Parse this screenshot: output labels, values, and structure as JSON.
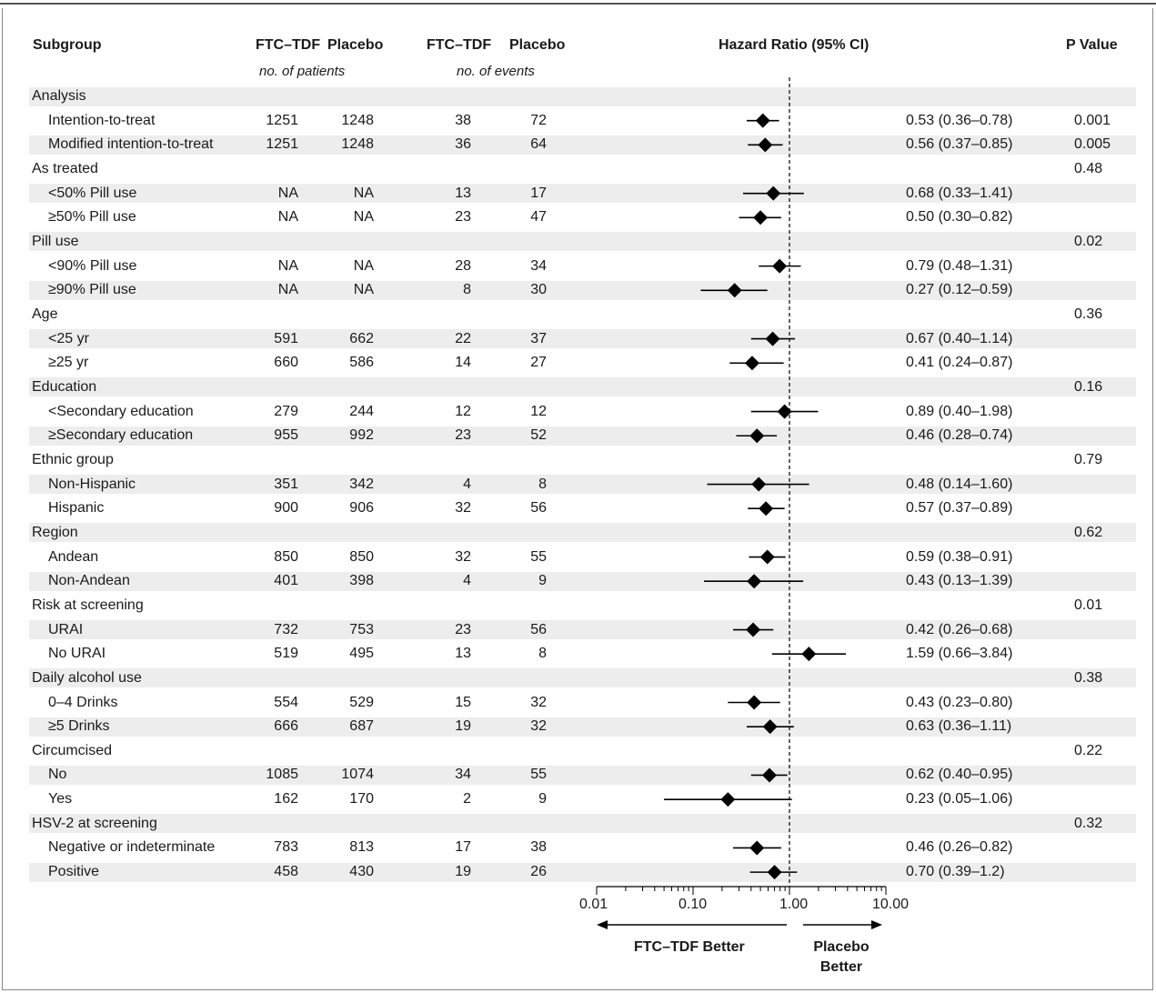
{
  "headers": {
    "subgroup": "Subgroup",
    "ftc_patients": "FTC–TDF",
    "placebo_patients": "Placebo",
    "patients_sub": "no. of patients",
    "ftc_events": "FTC–TDF",
    "placebo_events": "Placebo",
    "events_sub": "no. of events",
    "hr": "Hazard Ratio (95% CI)",
    "p": "P Value"
  },
  "axis": {
    "ticks": [
      "0.01",
      "0.10",
      "1.00",
      "10.00"
    ],
    "left_label": "FTC–TDF Better",
    "right_label_1": "Placebo",
    "right_label_2": "Better"
  },
  "rows": [
    {
      "label": "Analysis",
      "group": true,
      "p": ""
    },
    {
      "label": "Intention-to-treat",
      "group": false,
      "ftc_pat": "1251",
      "pla_pat": "1248",
      "ftc_ev": "38",
      "pla_ev": "72",
      "hr": 0.53,
      "lo": 0.36,
      "hi": 0.78,
      "ci": "0.53 (0.36–0.78)",
      "p": "0.001"
    },
    {
      "label": "Modified intention-to-treat",
      "group": false,
      "ftc_pat": "1251",
      "pla_pat": "1248",
      "ftc_ev": "36",
      "pla_ev": "64",
      "hr": 0.56,
      "lo": 0.37,
      "hi": 0.85,
      "ci": "0.56 (0.37–0.85)",
      "p": "0.005"
    },
    {
      "label": "As treated",
      "group": true,
      "p": "0.48"
    },
    {
      "label": "<50% Pill use",
      "group": false,
      "ftc_pat": "NA",
      "pla_pat": "NA",
      "ftc_ev": "13",
      "pla_ev": "17",
      "hr": 0.68,
      "lo": 0.33,
      "hi": 1.41,
      "ci": "0.68 (0.33–1.41)",
      "p": ""
    },
    {
      "label": "≥50% Pill use",
      "group": false,
      "ftc_pat": "NA",
      "pla_pat": "NA",
      "ftc_ev": "23",
      "pla_ev": "47",
      "hr": 0.5,
      "lo": 0.3,
      "hi": 0.82,
      "ci": "0.50 (0.30–0.82)",
      "p": ""
    },
    {
      "label": "Pill use",
      "group": true,
      "p": "0.02"
    },
    {
      "label": "<90% Pill use",
      "group": false,
      "ftc_pat": "NA",
      "pla_pat": "NA",
      "ftc_ev": "28",
      "pla_ev": "34",
      "hr": 0.79,
      "lo": 0.48,
      "hi": 1.31,
      "ci": "0.79 (0.48–1.31)",
      "p": ""
    },
    {
      "label": "≥90% Pill use",
      "group": false,
      "ftc_pat": "NA",
      "pla_pat": "NA",
      "ftc_ev": "8",
      "pla_ev": "30",
      "hr": 0.27,
      "lo": 0.12,
      "hi": 0.59,
      "ci": "0.27 (0.12–0.59)",
      "p": ""
    },
    {
      "label": "Age",
      "group": true,
      "p": "0.36"
    },
    {
      "label": "<25 yr",
      "group": false,
      "ftc_pat": "591",
      "pla_pat": "662",
      "ftc_ev": "22",
      "pla_ev": "37",
      "hr": 0.67,
      "lo": 0.4,
      "hi": 1.14,
      "ci": "0.67 (0.40–1.14)",
      "p": ""
    },
    {
      "label": "≥25 yr",
      "group": false,
      "ftc_pat": "660",
      "pla_pat": "586",
      "ftc_ev": "14",
      "pla_ev": "27",
      "hr": 0.41,
      "lo": 0.24,
      "hi": 0.87,
      "ci": "0.41 (0.24–0.87)",
      "p": ""
    },
    {
      "label": "Education",
      "group": true,
      "p": "0.16"
    },
    {
      "label": "<Secondary education",
      "group": false,
      "ftc_pat": "279",
      "pla_pat": "244",
      "ftc_ev": "12",
      "pla_ev": "12",
      "hr": 0.89,
      "lo": 0.4,
      "hi": 1.98,
      "ci": "0.89 (0.40–1.98)",
      "p": ""
    },
    {
      "label": "≥Secondary education",
      "group": false,
      "ftc_pat": "955",
      "pla_pat": "992",
      "ftc_ev": "23",
      "pla_ev": "52",
      "hr": 0.46,
      "lo": 0.28,
      "hi": 0.74,
      "ci": "0.46 (0.28–0.74)",
      "p": ""
    },
    {
      "label": "Ethnic group",
      "group": true,
      "p": "0.79"
    },
    {
      "label": "Non-Hispanic",
      "group": false,
      "ftc_pat": "351",
      "pla_pat": "342",
      "ftc_ev": "4",
      "pla_ev": "8",
      "hr": 0.48,
      "lo": 0.14,
      "hi": 1.6,
      "ci": "0.48 (0.14–1.60)",
      "p": ""
    },
    {
      "label": "Hispanic",
      "group": false,
      "ftc_pat": "900",
      "pla_pat": "906",
      "ftc_ev": "32",
      "pla_ev": "56",
      "hr": 0.57,
      "lo": 0.37,
      "hi": 0.89,
      "ci": "0.57 (0.37–0.89)",
      "p": ""
    },
    {
      "label": "Region",
      "group": true,
      "p": "0.62"
    },
    {
      "label": "Andean",
      "group": false,
      "ftc_pat": "850",
      "pla_pat": "850",
      "ftc_ev": "32",
      "pla_ev": "55",
      "hr": 0.59,
      "lo": 0.38,
      "hi": 0.91,
      "ci": "0.59 (0.38–0.91)",
      "p": ""
    },
    {
      "label": "Non-Andean",
      "group": false,
      "ftc_pat": "401",
      "pla_pat": "398",
      "ftc_ev": "4",
      "pla_ev": "9",
      "hr": 0.43,
      "lo": 0.13,
      "hi": 1.39,
      "ci": "0.43 (0.13–1.39)",
      "p": ""
    },
    {
      "label": "Risk at screening",
      "group": true,
      "p": "0.01"
    },
    {
      "label": "URAI",
      "group": false,
      "ftc_pat": "732",
      "pla_pat": "753",
      "ftc_ev": "23",
      "pla_ev": "56",
      "hr": 0.42,
      "lo": 0.26,
      "hi": 0.68,
      "ci": "0.42 (0.26–0.68)",
      "p": ""
    },
    {
      "label": "No URAI",
      "group": false,
      "ftc_pat": "519",
      "pla_pat": "495",
      "ftc_ev": "13",
      "pla_ev": "8",
      "hr": 1.59,
      "lo": 0.66,
      "hi": 3.84,
      "ci": "1.59 (0.66–3.84)",
      "p": ""
    },
    {
      "label": "Daily alcohol use",
      "group": true,
      "p": "0.38"
    },
    {
      "label": "0–4 Drinks",
      "group": false,
      "ftc_pat": "554",
      "pla_pat": "529",
      "ftc_ev": "15",
      "pla_ev": "32",
      "hr": 0.43,
      "lo": 0.23,
      "hi": 0.8,
      "ci": "0.43 (0.23–0.80)",
      "p": ""
    },
    {
      "label": "≥5 Drinks",
      "group": false,
      "ftc_pat": "666",
      "pla_pat": "687",
      "ftc_ev": "19",
      "pla_ev": "32",
      "hr": 0.63,
      "lo": 0.36,
      "hi": 1.11,
      "ci": "0.63 (0.36–1.11)",
      "p": ""
    },
    {
      "label": "Circumcised",
      "group": true,
      "p": "0.22"
    },
    {
      "label": "No",
      "group": false,
      "ftc_pat": "1085",
      "pla_pat": "1074",
      "ftc_ev": "34",
      "pla_ev": "55",
      "hr": 0.62,
      "lo": 0.4,
      "hi": 0.95,
      "ci": "0.62 (0.40–0.95)",
      "p": ""
    },
    {
      "label": "Yes",
      "group": false,
      "ftc_pat": "162",
      "pla_pat": "170",
      "ftc_ev": "2",
      "pla_ev": "9",
      "hr": 0.23,
      "lo": 0.05,
      "hi": 1.06,
      "ci": "0.23 (0.05–1.06)",
      "p": ""
    },
    {
      "label": "HSV-2 at screening",
      "group": true,
      "p": "0.32"
    },
    {
      "label": "Negative or indeterminate",
      "group": false,
      "ftc_pat": "783",
      "pla_pat": "813",
      "ftc_ev": "17",
      "pla_ev": "38",
      "hr": 0.46,
      "lo": 0.26,
      "hi": 0.82,
      "ci": "0.46 (0.26–0.82)",
      "p": ""
    },
    {
      "label": "Positive",
      "group": false,
      "ftc_pat": "458",
      "pla_pat": "430",
      "ftc_ev": "19",
      "pla_ev": "26",
      "hr": 0.7,
      "lo": 0.39,
      "hi": 1.2,
      "ci": "0.70 (0.39–1.2)",
      "p": ""
    }
  ],
  "chart_data": {
    "type": "scatter",
    "xlabel": "Hazard Ratio (95% CI)",
    "xscale": "log",
    "xlim": [
      0.01,
      10.0
    ],
    "reference_line": 1.0,
    "categories": [
      "Intention-to-treat",
      "Modified intention-to-treat",
      "<50% Pill use",
      "≥50% Pill use",
      "<90% Pill use",
      "≥90% Pill use",
      "<25 yr",
      "≥25 yr",
      "<Secondary education",
      "≥Secondary education",
      "Non-Hispanic",
      "Hispanic",
      "Andean",
      "Non-Andean",
      "URAI",
      "No URAI",
      "0–4 Drinks",
      "≥5 Drinks",
      "No",
      "Yes",
      "Negative or indeterminate",
      "Positive"
    ],
    "values": [
      0.53,
      0.56,
      0.68,
      0.5,
      0.79,
      0.27,
      0.67,
      0.41,
      0.89,
      0.46,
      0.48,
      0.57,
      0.59,
      0.43,
      0.42,
      1.59,
      0.43,
      0.63,
      0.62,
      0.23,
      0.46,
      0.7
    ],
    "ci_low": [
      0.36,
      0.37,
      0.33,
      0.3,
      0.48,
      0.12,
      0.4,
      0.24,
      0.4,
      0.28,
      0.14,
      0.37,
      0.38,
      0.13,
      0.26,
      0.66,
      0.23,
      0.36,
      0.4,
      0.05,
      0.26,
      0.39
    ],
    "ci_high": [
      0.78,
      0.85,
      1.41,
      0.82,
      1.31,
      0.59,
      1.14,
      0.87,
      1.98,
      0.74,
      1.6,
      0.89,
      0.91,
      1.39,
      0.68,
      3.84,
      0.8,
      1.11,
      0.95,
      1.06,
      0.82,
      1.2
    ],
    "tick_labels": [
      "0.01",
      "0.10",
      "1.00",
      "10.00"
    ],
    "annotations": [
      "FTC–TDF Better",
      "Placebo Better"
    ]
  }
}
